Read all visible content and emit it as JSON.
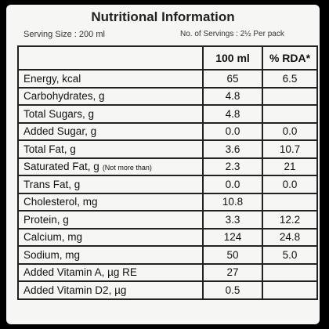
{
  "header": {
    "title": "Nutritional Information",
    "serving_size": "Serving Size : 200 ml",
    "servings": "No. of Servings : 2½ Per pack"
  },
  "table": {
    "columns": [
      "100 ml",
      "% RDA*"
    ],
    "rows": [
      {
        "label": "Energy, kcal",
        "per_100ml": "65",
        "rda": "6.5"
      },
      {
        "label": "Carbohydrates, g",
        "per_100ml": "4.8"
      },
      {
        "label": "Total Sugars, g",
        "per_100ml": "4.8"
      },
      {
        "label": "Added Sugar, g",
        "per_100ml": "0.0",
        "rda": "0.0"
      },
      {
        "label": "Total Fat, g",
        "per_100ml": "3.6",
        "rda": "10.7"
      },
      {
        "label": "Saturated Fat, g",
        "note": "(Not more than)",
        "per_100ml": "2.3",
        "rda": "21"
      },
      {
        "label": "Trans Fat, g",
        "per_100ml": "0.0",
        "rda": "0.0"
      },
      {
        "label": "Cholesterol, mg",
        "per_100ml": "10.8"
      },
      {
        "label": "Protein, g",
        "per_100ml": "3.3",
        "rda": "12.2"
      },
      {
        "label": "Calcium, mg",
        "per_100ml": "124",
        "rda": "24.8"
      },
      {
        "label": "Sodium, mg",
        "per_100ml": "50",
        "rda": "5.0"
      },
      {
        "label": "Added Vitamin A, µg RE",
        "per_100ml": "27"
      },
      {
        "label": "Added Vitamin D2, µg",
        "per_100ml": "0.5"
      }
    ]
  }
}
